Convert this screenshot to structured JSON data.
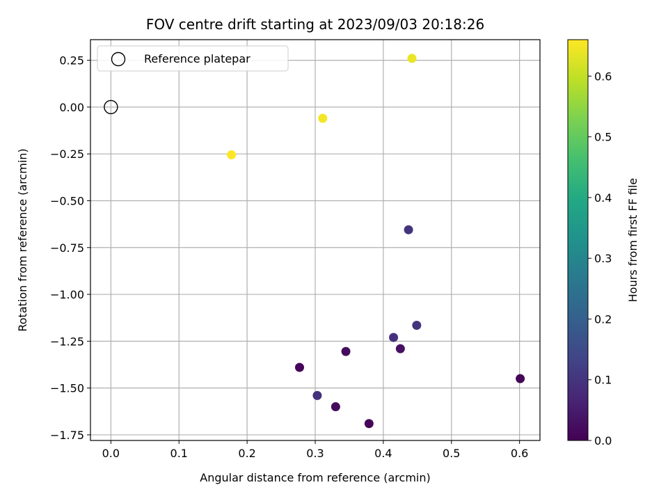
{
  "chart_data": {
    "type": "scatter",
    "title": "FOV centre drift starting at 2023/09/03 20:18:26",
    "xlabel": "Angular distance from reference (arcmin)",
    "ylabel": "Rotation from reference (arcmin)",
    "xlim": [
      -0.03,
      0.63
    ],
    "ylim": [
      -1.78,
      0.36
    ],
    "xticks": [
      0.0,
      0.1,
      0.2,
      0.3,
      0.4,
      0.5,
      0.6
    ],
    "xtick_labels": [
      "0.0",
      "0.1",
      "0.2",
      "0.3",
      "0.4",
      "0.5",
      "0.6"
    ],
    "yticks": [
      0.25,
      0.0,
      -0.25,
      -0.5,
      -0.75,
      -1.0,
      -1.25,
      -1.5,
      -1.75
    ],
    "ytick_labels": [
      "0.25",
      "0.00",
      "−0.25",
      "−0.50",
      "−0.75",
      "−1.00",
      "−1.25",
      "−1.50",
      "−1.75"
    ],
    "grid": true,
    "legend": {
      "placement": "upper-left",
      "entries": [
        "Reference platepar"
      ]
    },
    "reference_point": {
      "name": "Reference platepar",
      "x": 0.0,
      "y": 0.0
    },
    "colorbar": {
      "label": "Hours from first FF file",
      "colormap": "viridis",
      "range": [
        0.0,
        0.66
      ],
      "ticks": [
        0.0,
        0.1,
        0.2,
        0.3,
        0.4,
        0.5,
        0.6
      ],
      "tick_labels": [
        "0.0",
        "0.1",
        "0.2",
        "0.3",
        "0.4",
        "0.5",
        "0.6"
      ]
    },
    "points": [
      {
        "x": 0.177,
        "y": -0.255,
        "hours": 0.66
      },
      {
        "x": 0.311,
        "y": -0.06,
        "hours": 0.65
      },
      {
        "x": 0.442,
        "y": 0.26,
        "hours": 0.64
      },
      {
        "x": 0.437,
        "y": -0.655,
        "hours": 0.1
      },
      {
        "x": 0.449,
        "y": -1.165,
        "hours": 0.1
      },
      {
        "x": 0.415,
        "y": -1.23,
        "hours": 0.09
      },
      {
        "x": 0.303,
        "y": -1.54,
        "hours": 0.09
      },
      {
        "x": 0.425,
        "y": -1.29,
        "hours": 0.03
      },
      {
        "x": 0.345,
        "y": -1.305,
        "hours": 0.02
      },
      {
        "x": 0.277,
        "y": -1.39,
        "hours": 0.01
      },
      {
        "x": 0.33,
        "y": -1.6,
        "hours": 0.02
      },
      {
        "x": 0.379,
        "y": -1.69,
        "hours": 0.01
      },
      {
        "x": 0.601,
        "y": -1.45,
        "hours": 0.01
      }
    ]
  }
}
